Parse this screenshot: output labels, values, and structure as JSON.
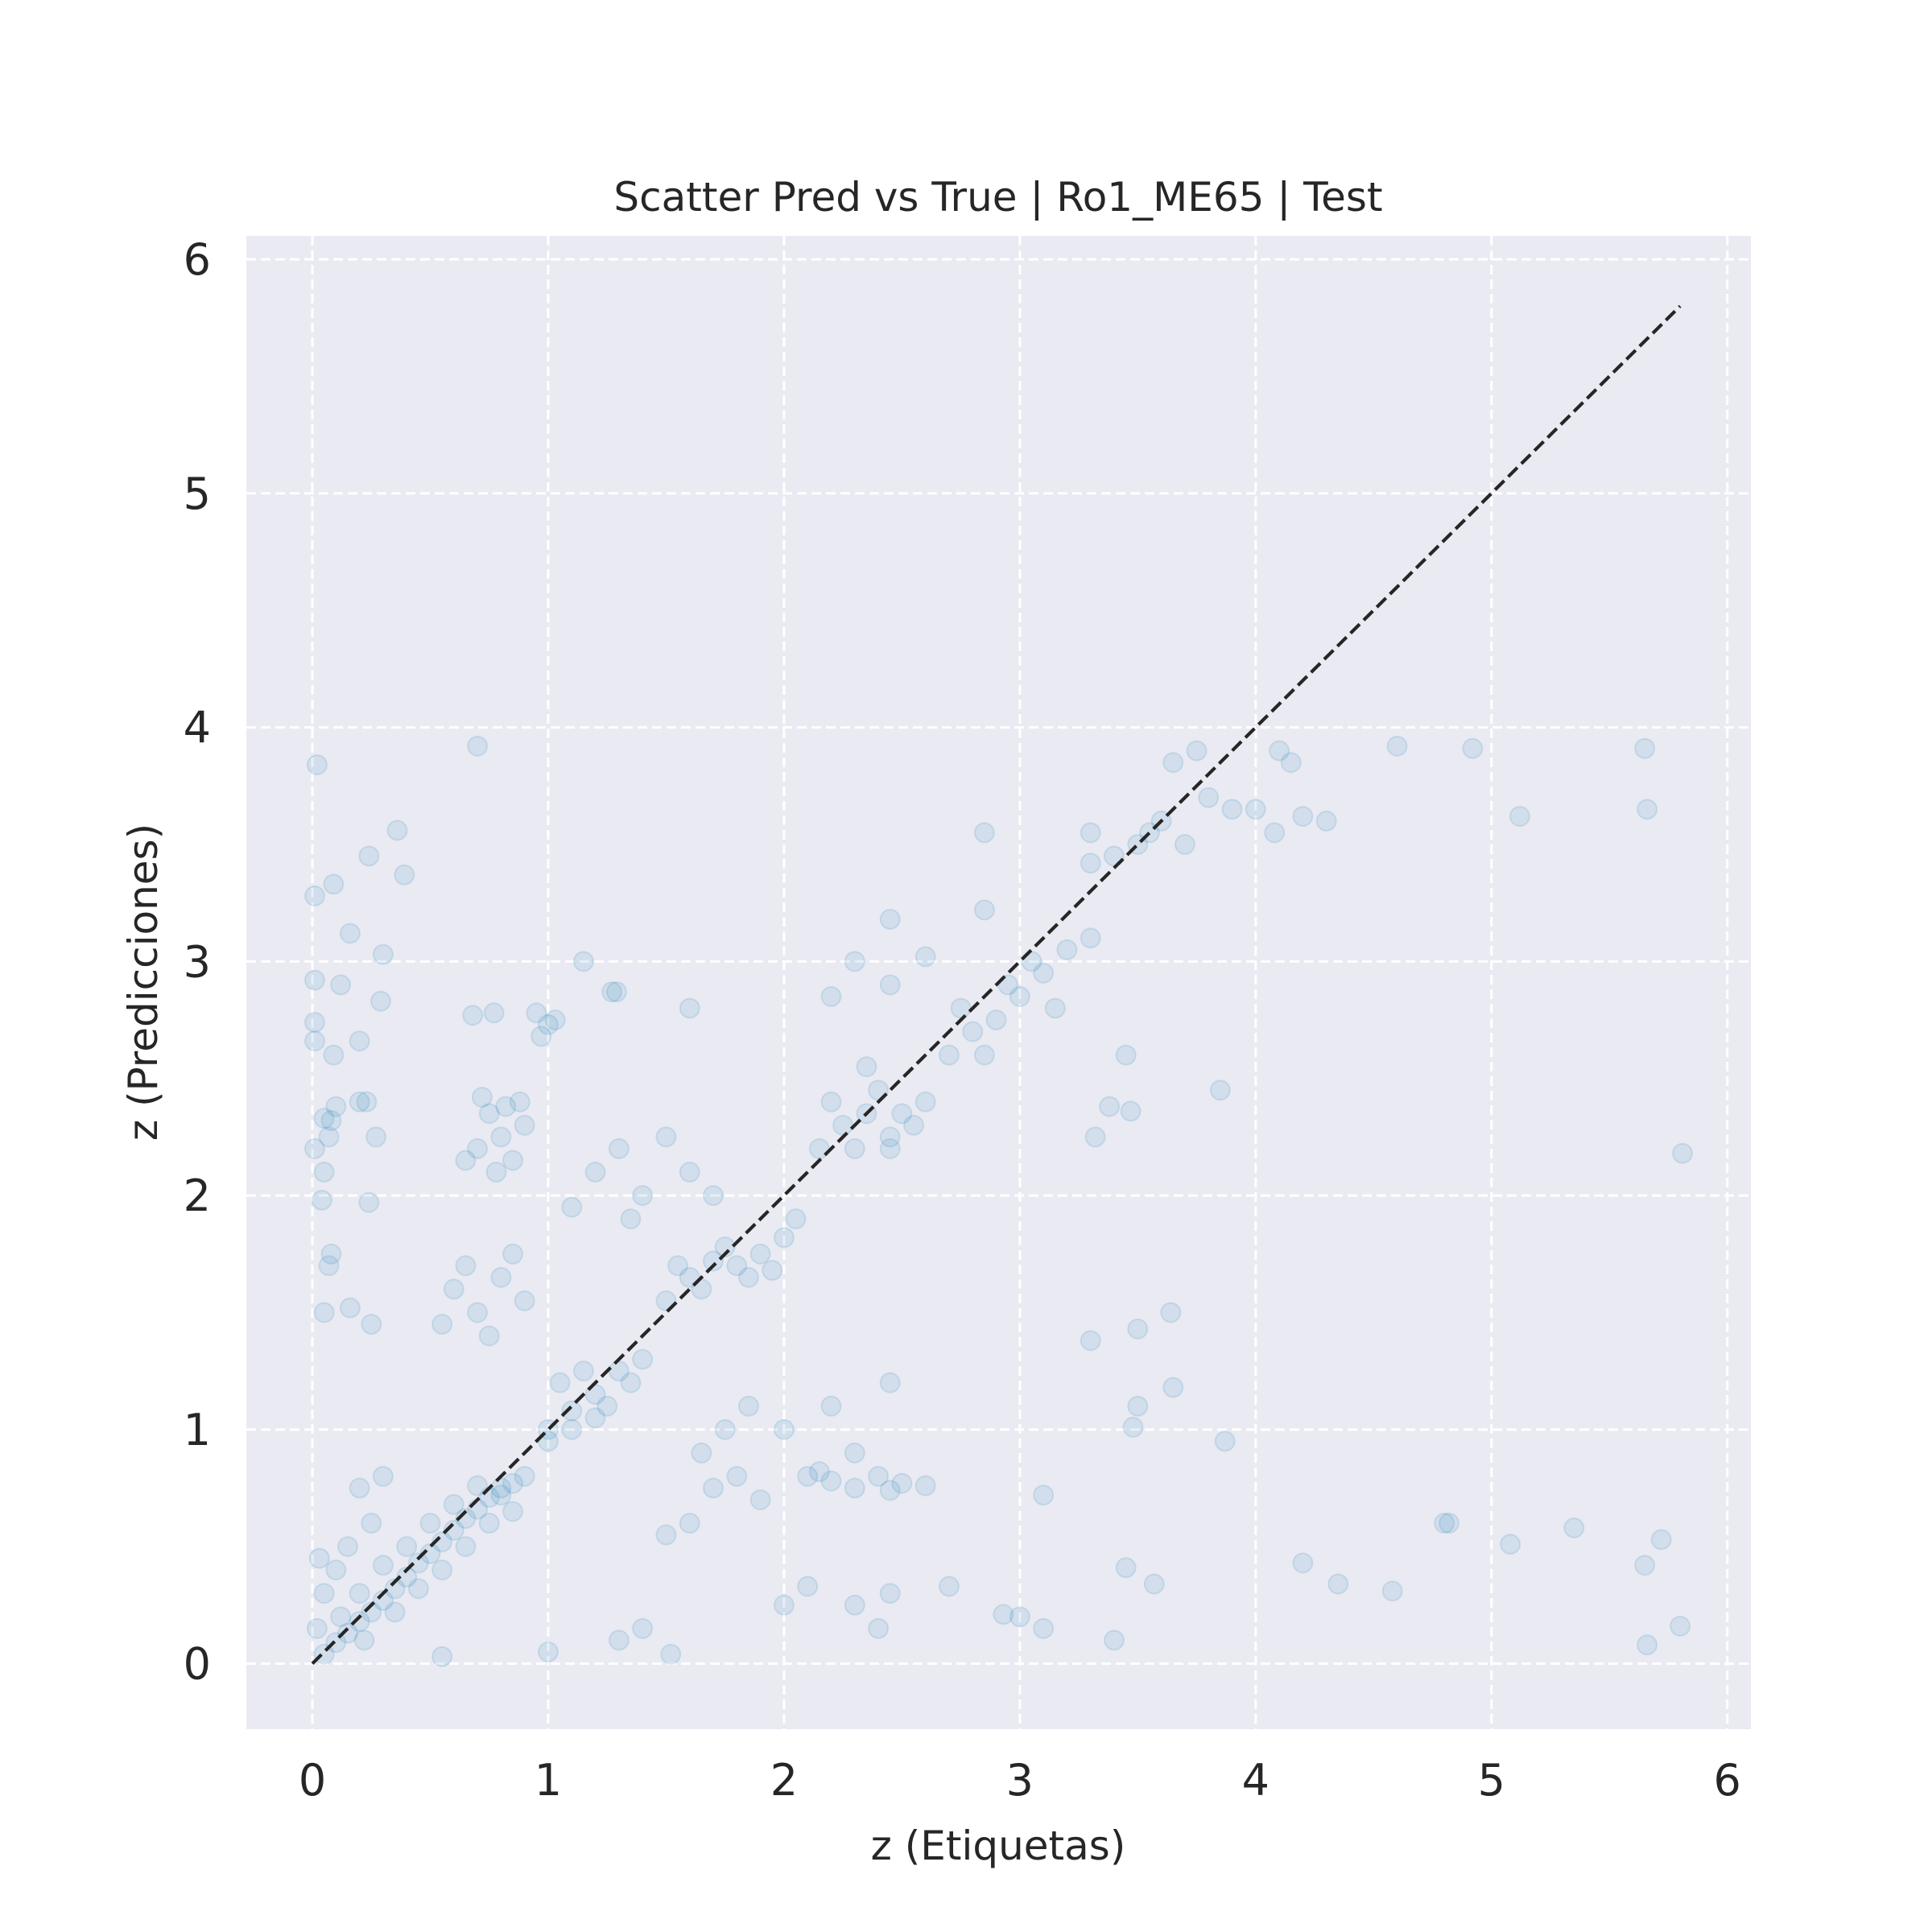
{
  "chart_data": {
    "type": "scatter",
    "title": "Scatter Pred vs True | Ro1_ME65 | Test",
    "xlabel": "z (Etiquetas)",
    "ylabel": "z (Predicciones)",
    "xlim": [
      -0.28,
      6.1
    ],
    "ylim": [
      -0.28,
      6.1
    ],
    "xticks": [
      0,
      1,
      2,
      3,
      4,
      5,
      6
    ],
    "yticks": [
      0,
      1,
      2,
      3,
      4,
      5,
      6
    ],
    "xtick_labels": [
      "0",
      "1",
      "2",
      "3",
      "4",
      "5",
      "6"
    ],
    "ytick_labels": [
      "0",
      "1",
      "2",
      "3",
      "4",
      "5",
      "6"
    ],
    "grid": true,
    "grid_style": "dashed",
    "background_color": "#eaeaf2",
    "point_color": "#0072b2",
    "point_alpha": 0.1,
    "reference_line": {
      "style": "dashed",
      "color": "#262626",
      "x": [
        0.0,
        5.8
      ],
      "y": [
        0.0,
        5.8
      ]
    },
    "series": [
      {
        "points": [
          [
            0.05,
            0.04
          ],
          [
            0.1,
            0.09
          ],
          [
            0.15,
            0.13
          ],
          [
            0.2,
            0.18
          ],
          [
            0.25,
            0.22
          ],
          [
            0.3,
            0.27
          ],
          [
            0.35,
            0.32
          ],
          [
            0.4,
            0.37
          ],
          [
            0.45,
            0.43
          ],
          [
            0.5,
            0.47
          ],
          [
            0.55,
            0.52
          ],
          [
            0.6,
            0.57
          ],
          [
            0.65,
            0.62
          ],
          [
            0.7,
            0.66
          ],
          [
            0.75,
            0.71
          ],
          [
            0.8,
            0.75
          ],
          [
            0.85,
            0.77
          ],
          [
            0.9,
            0.8
          ],
          [
            0.12,
            0.2
          ],
          [
            0.2,
            0.3
          ],
          [
            0.3,
            0.42
          ],
          [
            0.4,
            0.5
          ],
          [
            0.5,
            0.6
          ],
          [
            0.6,
            0.68
          ],
          [
            0.7,
            0.76
          ],
          [
            0.8,
            0.72
          ],
          [
            0.22,
            0.1
          ],
          [
            0.35,
            0.22
          ],
          [
            0.45,
            0.32
          ],
          [
            0.55,
            0.4
          ],
          [
            0.65,
            0.5
          ],
          [
            0.75,
            0.6
          ],
          [
            0.85,
            0.65
          ],
          [
            1.0,
            1.0
          ],
          [
            1.1,
            1.08
          ],
          [
            1.2,
            1.15
          ],
          [
            1.3,
            1.25
          ],
          [
            1.4,
            1.3
          ],
          [
            1.05,
            1.2
          ],
          [
            1.15,
            1.25
          ],
          [
            1.25,
            1.1
          ],
          [
            1.35,
            1.2
          ],
          [
            1.0,
            0.95
          ],
          [
            1.1,
            1.0
          ],
          [
            1.2,
            1.05
          ],
          [
            1.5,
            1.55
          ],
          [
            1.6,
            1.65
          ],
          [
            1.7,
            1.72
          ],
          [
            1.8,
            1.7
          ],
          [
            1.9,
            1.75
          ],
          [
            2.0,
            1.82
          ],
          [
            1.55,
            1.7
          ],
          [
            1.65,
            1.6
          ],
          [
            1.75,
            1.78
          ],
          [
            1.85,
            1.65
          ],
          [
            1.95,
            1.68
          ],
          [
            2.05,
            1.9
          ],
          [
            2.15,
            2.2
          ],
          [
            2.25,
            2.3
          ],
          [
            2.35,
            2.35
          ],
          [
            2.45,
            2.25
          ],
          [
            2.55,
            2.3
          ],
          [
            2.2,
            2.4
          ],
          [
            2.3,
            2.2
          ],
          [
            2.4,
            2.45
          ],
          [
            2.5,
            2.35
          ],
          [
            2.6,
            2.4
          ],
          [
            2.35,
            2.55
          ],
          [
            2.45,
            2.2
          ],
          [
            2.7,
            2.6
          ],
          [
            2.8,
            2.7
          ],
          [
            2.9,
            2.75
          ],
          [
            3.0,
            2.85
          ],
          [
            3.1,
            2.95
          ],
          [
            3.2,
            3.05
          ],
          [
            2.75,
            2.8
          ],
          [
            2.85,
            2.6
          ],
          [
            2.95,
            2.9
          ],
          [
            3.05,
            3.0
          ],
          [
            3.15,
            2.8
          ],
          [
            3.3,
            3.1
          ],
          [
            3.5,
            3.5
          ],
          [
            3.6,
            3.6
          ],
          [
            3.7,
            3.5
          ],
          [
            3.8,
            3.7
          ],
          [
            3.9,
            3.65
          ],
          [
            3.65,
            3.85
          ],
          [
            3.75,
            3.9
          ],
          [
            4.0,
            3.65
          ],
          [
            4.1,
            3.9
          ],
          [
            4.15,
            3.85
          ],
          [
            3.4,
            3.45
          ],
          [
            3.55,
            3.55
          ],
          [
            0.7,
            2.2
          ],
          [
            0.75,
            2.35
          ],
          [
            0.8,
            2.25
          ],
          [
            0.85,
            2.15
          ],
          [
            0.9,
            2.3
          ],
          [
            0.65,
            2.15
          ],
          [
            0.72,
            2.42
          ],
          [
            0.82,
            2.38
          ],
          [
            0.78,
            2.1
          ],
          [
            0.88,
            2.4
          ],
          [
            0.6,
            1.6
          ],
          [
            0.7,
            1.5
          ],
          [
            0.8,
            1.65
          ],
          [
            0.9,
            1.55
          ],
          [
            0.55,
            1.45
          ],
          [
            0.65,
            1.7
          ],
          [
            0.75,
            1.4
          ],
          [
            0.85,
            1.75
          ],
          [
            2.1,
            0.8
          ],
          [
            2.2,
            0.78
          ],
          [
            2.3,
            0.75
          ],
          [
            2.4,
            0.8
          ],
          [
            2.5,
            0.77
          ],
          [
            2.6,
            0.76
          ],
          [
            2.15,
            0.82
          ],
          [
            2.45,
            0.74
          ],
          [
            1.6,
            0.6
          ],
          [
            1.7,
            0.75
          ],
          [
            1.8,
            0.8
          ],
          [
            1.9,
            0.7
          ],
          [
            1.5,
            0.55
          ],
          [
            1.65,
            0.9
          ],
          [
            1.75,
            1.0
          ],
          [
            1.85,
            1.1
          ],
          [
            2.0,
            1.0
          ],
          [
            2.2,
            1.1
          ],
          [
            2.3,
            0.9
          ],
          [
            2.45,
            1.2
          ],
          [
            1.3,
            2.2
          ],
          [
            1.4,
            2.0
          ],
          [
            1.5,
            2.25
          ],
          [
            1.6,
            2.1
          ],
          [
            1.7,
            2.0
          ],
          [
            1.2,
            2.1
          ],
          [
            1.1,
            1.95
          ],
          [
            1.35,
            1.9
          ],
          [
            0.2,
            0.75
          ],
          [
            0.25,
            0.6
          ],
          [
            0.3,
            0.8
          ],
          [
            0.15,
            0.5
          ],
          [
            0.1,
            0.4
          ],
          [
            0.05,
            0.3
          ],
          [
            0.02,
            0.15
          ],
          [
            0.03,
            0.45
          ],
          [
            0.02,
            3.84
          ],
          [
            0.7,
            3.92
          ],
          [
            0.36,
            3.56
          ],
          [
            0.24,
            3.45
          ],
          [
            0.39,
            3.37
          ],
          [
            0.09,
            3.33
          ],
          [
            0.01,
            3.28
          ],
          [
            0.16,
            3.12
          ],
          [
            0.3,
            3.03
          ],
          [
            0.01,
            2.92
          ],
          [
            0.12,
            2.9
          ],
          [
            0.29,
            2.83
          ],
          [
            0.01,
            2.74
          ],
          [
            0.2,
            2.66
          ],
          [
            0.01,
            2.66
          ],
          [
            0.09,
            2.6
          ],
          [
            0.2,
            2.4
          ],
          [
            0.23,
            2.4
          ],
          [
            0.1,
            2.38
          ],
          [
            0.05,
            2.33
          ],
          [
            0.08,
            2.32
          ],
          [
            0.27,
            2.25
          ],
          [
            0.01,
            2.2
          ],
          [
            0.07,
            2.25
          ],
          [
            0.05,
            2.1
          ],
          [
            0.04,
            1.98
          ],
          [
            0.24,
            1.97
          ],
          [
            0.08,
            1.75
          ],
          [
            0.07,
            1.7
          ],
          [
            0.05,
            1.5
          ],
          [
            0.16,
            1.52
          ],
          [
            0.25,
            1.45
          ],
          [
            1.15,
            3.0
          ],
          [
            1.27,
            2.87
          ],
          [
            1.29,
            2.87
          ],
          [
            0.68,
            2.77
          ],
          [
            0.77,
            2.78
          ],
          [
            0.95,
            2.78
          ],
          [
            1.03,
            2.75
          ],
          [
            1.6,
            2.8
          ],
          [
            1.0,
            2.73
          ],
          [
            0.97,
            2.68
          ],
          [
            2.3,
            3.0
          ],
          [
            2.45,
            3.18
          ],
          [
            2.6,
            3.02
          ],
          [
            2.45,
            2.9
          ],
          [
            2.2,
            2.85
          ],
          [
            2.85,
            3.55
          ],
          [
            2.85,
            3.22
          ],
          [
            3.3,
            3.55
          ],
          [
            3.3,
            3.42
          ],
          [
            4.6,
            3.92
          ],
          [
            4.92,
            3.91
          ],
          [
            5.65,
            3.91
          ],
          [
            5.66,
            3.65
          ],
          [
            5.12,
            3.62
          ],
          [
            4.3,
            3.6
          ],
          [
            4.2,
            3.62
          ],
          [
            4.08,
            3.55
          ],
          [
            3.85,
            2.45
          ],
          [
            3.47,
            2.36
          ],
          [
            3.32,
            2.25
          ],
          [
            3.45,
            2.6
          ],
          [
            3.38,
            2.38
          ],
          [
            5.81,
            2.18
          ],
          [
            3.3,
            1.38
          ],
          [
            3.5,
            1.43
          ],
          [
            3.64,
            1.5
          ],
          [
            3.65,
            1.18
          ],
          [
            3.5,
            1.1
          ],
          [
            3.48,
            1.01
          ],
          [
            3.87,
            0.95
          ],
          [
            3.1,
            0.72
          ],
          [
            4.8,
            0.6
          ],
          [
            4.82,
            0.6
          ],
          [
            5.35,
            0.58
          ],
          [
            5.72,
            0.53
          ],
          [
            5.08,
            0.51
          ],
          [
            4.2,
            0.43
          ],
          [
            5.65,
            0.42
          ],
          [
            3.45,
            0.41
          ],
          [
            3.57,
            0.34
          ],
          [
            4.35,
            0.34
          ],
          [
            4.58,
            0.31
          ],
          [
            5.8,
            0.16
          ],
          [
            5.66,
            0.08
          ],
          [
            3.4,
            0.1
          ],
          [
            3.1,
            0.15
          ],
          [
            3.0,
            0.2
          ],
          [
            2.93,
            0.21
          ],
          [
            1.52,
            0.04
          ],
          [
            0.55,
            0.03
          ],
          [
            1.0,
            0.05
          ],
          [
            1.3,
            0.1
          ],
          [
            1.4,
            0.15
          ],
          [
            2.0,
            0.25
          ],
          [
            2.3,
            0.25
          ],
          [
            2.45,
            0.3
          ],
          [
            2.4,
            0.15
          ],
          [
            2.7,
            0.33
          ],
          [
            2.1,
            0.33
          ]
        ]
      }
    ]
  }
}
